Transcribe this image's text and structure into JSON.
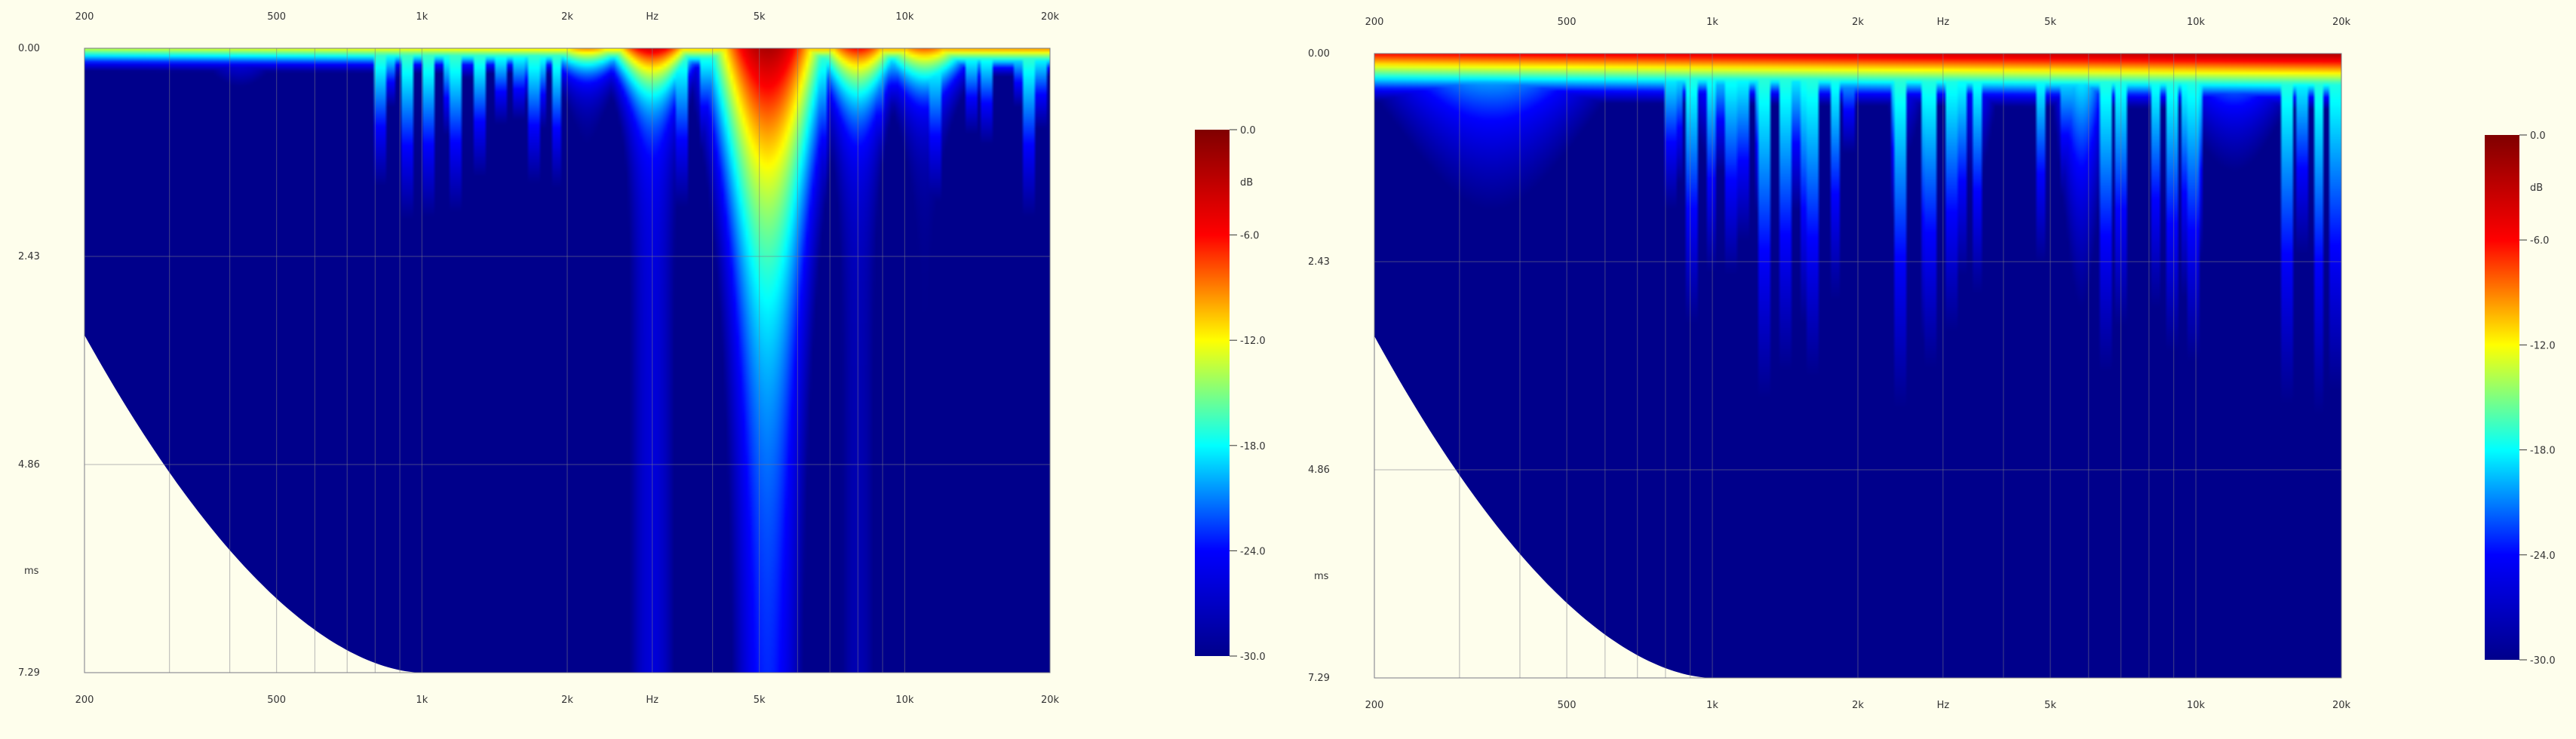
{
  "colors": {
    "background": "#fefeec",
    "grid": "#7a7a86",
    "colormap": [
      "#00008b",
      "#0000ff",
      "#00ffff",
      "#ffff00",
      "#ff0000",
      "#800000"
    ]
  },
  "chart_data": [
    {
      "type": "heatmap",
      "title": "",
      "x_scale": "log",
      "xlim": [
        200,
        20000
      ],
      "x_ticks": [
        {
          "value": 200,
          "label": "200"
        },
        {
          "value": 500,
          "label": "500"
        },
        {
          "value": 1000,
          "label": "1k"
        },
        {
          "value": 2000,
          "label": "2k"
        },
        {
          "value": 5000,
          "label": "5k"
        },
        {
          "value": 10000,
          "label": "10k"
        },
        {
          "value": 20000,
          "label": "20k"
        }
      ],
      "x_unit": "Hz",
      "x_unit_at": 3000,
      "ylim": [
        0,
        7.29
      ],
      "y_ticks": [
        {
          "value": 0,
          "label": "0.00"
        },
        {
          "value": 2.43,
          "label": "2.43"
        },
        {
          "value": 4.86,
          "label": "4.86"
        },
        {
          "value": 7.29,
          "label": "7.29"
        }
      ],
      "y_unit": "ms",
      "y_unit_at": 6.1,
      "colorbar": {
        "range": [
          -30,
          0
        ],
        "unit": "dB",
        "ticks": [
          "0.0",
          "-6.0",
          "-12.0",
          "-18.0",
          "-24.0",
          "-30.0"
        ]
      },
      "grid": true,
      "top_level_db": -11,
      "peaks": [
        {
          "freq": 5200,
          "db": -2,
          "width": 0.06,
          "depth_ms": 5.0
        },
        {
          "freq": 3000,
          "db": -4,
          "width": 0.05,
          "depth_ms": 1.2
        },
        {
          "freq": 8000,
          "db": -6,
          "width": 0.05,
          "depth_ms": 1.5
        },
        {
          "freq": 11000,
          "db": -8,
          "width": 0.06,
          "depth_ms": 1.2
        },
        {
          "freq": 2200,
          "db": -9,
          "width": 0.06,
          "depth_ms": 0.8
        },
        {
          "freq": 900,
          "db": -18,
          "width": 0.06,
          "depth_ms": 1.0
        },
        {
          "freq": 420,
          "db": -22,
          "width": 0.08,
          "depth_ms": 2.2
        }
      ]
    },
    {
      "type": "heatmap",
      "title": "",
      "x_scale": "log",
      "xlim": [
        200,
        20000
      ],
      "x_ticks": [
        {
          "value": 200,
          "label": "200"
        },
        {
          "value": 500,
          "label": "500"
        },
        {
          "value": 1000,
          "label": "1k"
        },
        {
          "value": 2000,
          "label": "2k"
        },
        {
          "value": 5000,
          "label": "5k"
        },
        {
          "value": 10000,
          "label": "10k"
        },
        {
          "value": 20000,
          "label": "20k"
        }
      ],
      "x_unit": "Hz",
      "x_unit_at": 3000,
      "ylim": [
        0,
        7.29
      ],
      "y_ticks": [
        {
          "value": 0,
          "label": "0.00"
        },
        {
          "value": 2.43,
          "label": "2.43"
        },
        {
          "value": 4.86,
          "label": "4.86"
        },
        {
          "value": 7.29,
          "label": "7.29"
        }
      ],
      "y_unit": "ms",
      "y_unit_at": 6.1,
      "colorbar": {
        "range": [
          -30,
          0
        ],
        "unit": "dB",
        "ticks": [
          "0.0",
          "-6.0",
          "-12.0",
          "-18.0",
          "-24.0",
          "-30.0"
        ]
      },
      "grid": true,
      "top_level_db": -4,
      "peaks": [
        {
          "freq": 5800,
          "db": -16,
          "width": 0.04,
          "depth_ms": 6.5
        },
        {
          "freq": 1000,
          "db": -18,
          "width": 0.05,
          "depth_ms": 3.5
        },
        {
          "freq": 1500,
          "db": -20,
          "width": 0.04,
          "depth_ms": 4.5
        },
        {
          "freq": 2500,
          "db": -21,
          "width": 0.04,
          "depth_ms": 5.0
        },
        {
          "freq": 3500,
          "db": -20,
          "width": 0.04,
          "depth_ms": 5.5
        },
        {
          "freq": 12000,
          "db": -16,
          "width": 0.1,
          "depth_ms": 3.0
        },
        {
          "freq": 350,
          "db": -17,
          "width": 0.18,
          "depth_ms": 4.5
        }
      ]
    }
  ]
}
